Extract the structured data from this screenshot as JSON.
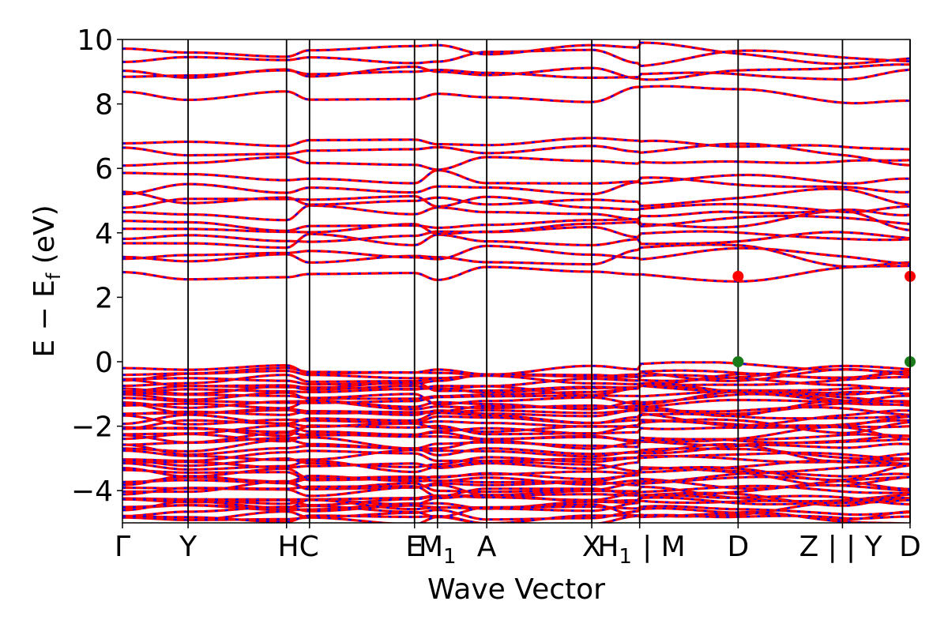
{
  "chart_data": {
    "type": "line",
    "title": "",
    "xlabel": "Wave Vector",
    "ylabel": "E − E_f (eV)",
    "ylabel_main": "E − E",
    "ylabel_sub": "f",
    "ylabel_units": " (eV)",
    "ylim": [
      -5,
      10
    ],
    "yticks": [
      -4,
      -2,
      0,
      2,
      4,
      6,
      8,
      10
    ],
    "ytick_labels": [
      "−4",
      "−2",
      "0",
      "2",
      "4",
      "6",
      "8",
      "10"
    ],
    "xlim": [
      0,
      12
    ],
    "high_symmetry_points": [
      {
        "label": "Γ",
        "x": 0
      },
      {
        "label": "Y",
        "x": 1.0
      },
      {
        "label": "H",
        "x": 2.5
      },
      {
        "label": "C",
        "x": 2.85
      },
      {
        "label": "E",
        "x": 4.45
      },
      {
        "label": "M",
        "sub": "1",
        "x": 4.8
      },
      {
        "label": "A",
        "x": 5.55
      },
      {
        "label": "X",
        "x": 7.15
      },
      {
        "label": "H",
        "sub": "1",
        "x": 7.88
      },
      {
        "label": "| M",
        "x": 7.88
      },
      {
        "label": "D",
        "x": 9.38
      },
      {
        "label": "Z |",
        "x": 10.97
      },
      {
        "label": "| Y",
        "x": 10.97
      },
      {
        "label": "D",
        "x": 12.0
      }
    ],
    "tick_display": [
      {
        "text": "Γ",
        "x": 0,
        "align": "middle"
      },
      {
        "text": "Y",
        "x": 1.0,
        "align": "middle"
      },
      {
        "text": "HC",
        "x": 2.68,
        "align": "middle"
      },
      {
        "text": "E",
        "x": 4.45,
        "align": "middle"
      },
      {
        "text": "M",
        "sub": "1",
        "x": 4.8,
        "align": "middle"
      },
      {
        "text": "A",
        "x": 5.55,
        "align": "middle"
      },
      {
        "text": "X",
        "x": 7.15,
        "align": "middle"
      },
      {
        "text": "H",
        "sub": "1",
        "x": 7.5,
        "align": "middle"
      },
      {
        "text": "| M",
        "x": 8.25,
        "align": "middle"
      },
      {
        "text": "D",
        "x": 9.38,
        "align": "middle"
      },
      {
        "text": "Z |",
        "x": 10.6,
        "align": "middle"
      },
      {
        "text": "| Y",
        "x": 11.3,
        "align": "middle"
      },
      {
        "text": "D",
        "x": 12.0,
        "align": "middle"
      }
    ],
    "vertical_lines": [
      1.0,
      2.5,
      2.85,
      4.45,
      4.8,
      5.55,
      7.15,
      7.88,
      9.38,
      10.97,
      12.0
    ],
    "markers": [
      {
        "x": 9.38,
        "y": 2.65,
        "color": "#ff0000",
        "name": "cbm-marker"
      },
      {
        "x": 12.0,
        "y": 2.65,
        "color": "#ff0000",
        "name": "cbm-marker-end"
      },
      {
        "x": 9.38,
        "y": 0.0,
        "color": "#1a7a1a",
        "name": "vbm-marker"
      },
      {
        "x": 12.0,
        "y": 0.0,
        "color": "#1a7a1a",
        "name": "vbm-marker-end"
      }
    ],
    "series_colors": {
      "spin_up": "#ff0000",
      "spin_down": "#0000ff"
    },
    "band_energies_at_gamma": {
      "conduction": [
        2.75,
        3.25,
        3.35,
        3.75,
        3.95,
        4.15,
        4.3,
        4.6,
        4.95,
        5.1,
        5.45,
        5.75,
        6.15,
        6.45,
        6.75,
        8.3,
        8.95,
        9.05,
        9.5,
        9.6
      ],
      "valence": [
        -0.28,
        -0.45,
        -0.55,
        -0.7,
        -0.85,
        -1.0,
        -1.15,
        -1.3,
        -1.45,
        -1.6,
        -1.8,
        -2.0,
        -2.15,
        -2.35,
        -2.6,
        -2.9,
        -3.15,
        -3.5,
        -3.65,
        -3.85,
        -4.0,
        -4.15,
        -4.3,
        -4.45,
        -4.6,
        -4.75,
        -4.9
      ]
    }
  }
}
